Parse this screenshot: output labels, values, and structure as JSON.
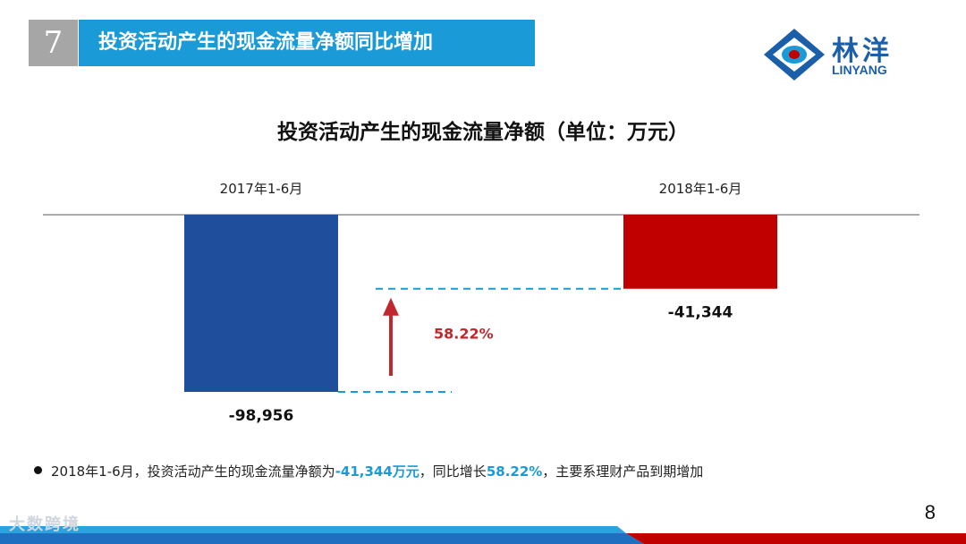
{
  "header": {
    "section_number": "7",
    "title": "投资活动产生的现金流量净额同比增加"
  },
  "logo": {
    "name_cn": "林洋",
    "name_en": "LINYANG"
  },
  "chart_data": {
    "type": "bar",
    "title": "投资活动产生的现金流量净额（单位：万元）",
    "categories": [
      "2017年1-6月",
      "2018年1-6月"
    ],
    "values": [
      -98956,
      -41344
    ],
    "value_labels": [
      "-98,956",
      "-41,344"
    ],
    "ylim": [
      -98956,
      0
    ],
    "bar_colors": [
      "#1f4e9c",
      "#c00000"
    ],
    "annotation": {
      "text": "58.22%",
      "color": "#c0282e",
      "arrow": "up"
    },
    "grid": false,
    "legend": "none"
  },
  "bullet": {
    "prefix": "2018年1-6月，投资活动产生的现金流量净额为",
    "amount": "-41,344万元",
    "middle": "，同比增长",
    "growth": "58.22%",
    "suffix": "，主要系理财产品到期增加"
  },
  "page_number": "8",
  "watermark": "大数跨境",
  "colors": {
    "accent": "#1a9ad6",
    "footer_red": "#c00000",
    "footer_blue": "#1f6fc0"
  }
}
